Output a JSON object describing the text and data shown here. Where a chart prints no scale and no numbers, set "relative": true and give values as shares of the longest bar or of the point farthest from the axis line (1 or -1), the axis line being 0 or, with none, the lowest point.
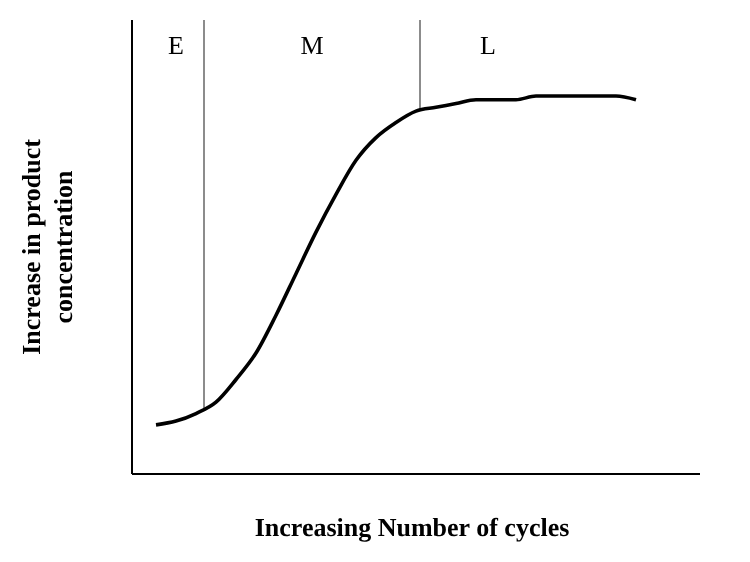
{
  "chart_data": {
    "type": "line",
    "relative": true,
    "xlabel": "Increasing Number of cycles",
    "ylabel": "Increase in product concentration",
    "categories": [
      null,
      null,
      null,
      null,
      null,
      null,
      null,
      null,
      null,
      null,
      null,
      null,
      null,
      null,
      null,
      null,
      null,
      null,
      null,
      null,
      null,
      null,
      null,
      null,
      null
    ],
    "series": [
      {
        "color": "#000000",
        "values": [
          0.13,
          0.14,
          0.16,
          0.19,
          0.25,
          0.32,
          0.42,
          0.53,
          0.64,
          0.74,
          0.83,
          0.89,
          0.93,
          0.96,
          0.97,
          0.98,
          0.99,
          0.99,
          0.99,
          1,
          1,
          1,
          1,
          1,
          0.99
        ]
      }
    ],
    "annotations": [
      "E",
      "M",
      "L"
    ],
    "marker": "none",
    "line_style": "solid"
  }
}
